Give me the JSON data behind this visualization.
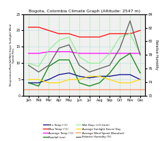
{
  "title": "Bogota, Colombia Climate Graph (Altitude: 2547 m)",
  "months": [
    "Jan",
    "Feb",
    "Mar",
    "Apr",
    "May",
    "Jun",
    "Jul",
    "Aug",
    "Sep",
    "Oct",
    "Nov",
    "Dec"
  ],
  "min_temp": [
    4.0,
    4.0,
    5.0,
    6.5,
    7.0,
    6.0,
    5.5,
    6.0,
    6.0,
    6.5,
    6.5,
    5.0
  ],
  "max_temp": [
    21.0,
    21.0,
    20.0,
    19.0,
    19.0,
    18.0,
    18.0,
    18.0,
    19.0,
    19.0,
    19.0,
    20.0
  ],
  "avg_temp": [
    13.0,
    13.0,
    13.5,
    13.5,
    13.5,
    13.0,
    13.0,
    13.0,
    13.0,
    13.0,
    13.0,
    13.0
  ],
  "rainfall": [
    4.0,
    3.0,
    9.0,
    11.0,
    11.0,
    4.0,
    3.0,
    4.0,
    7.0,
    11.0,
    13.0,
    7.0
  ],
  "wet_days": [
    10,
    9,
    14,
    17,
    18,
    12,
    10,
    10,
    13,
    18,
    19,
    13
  ],
  "sunlight": [
    5.0,
    5.0,
    4.0,
    4.0,
    5.0,
    5.0,
    6.0,
    6.0,
    5.0,
    4.0,
    4.0,
    5.0
  ],
  "wind_speed_val": 2.0,
  "humidity": [
    76.5,
    75.5,
    76.5,
    79.0,
    79.5,
    76.5,
    75.5,
    76.0,
    76.5,
    79.0,
    83.0,
    78.0
  ],
  "min_temp_color": "#00008B",
  "max_temp_color": "#FF0000",
  "avg_temp_color": "#FF00FF",
  "rainfall_color": "#008000",
  "wet_days_color": "#90EE90",
  "sunlight_color": "#FFD700",
  "wind_speed_color": "#FFA07A",
  "humidity_color": "#555555",
  "ylim_left": [
    0,
    25
  ],
  "ylim_right": [
    72,
    84
  ],
  "left_yticks": [
    0,
    5,
    10,
    15,
    20,
    25
  ],
  "right_yticks": [
    72,
    74,
    76,
    78,
    80,
    82,
    84
  ],
  "hgrid_values": [
    5,
    10,
    15,
    20
  ],
  "background_color": "#ffffff",
  "plot_bg_color": "#f0f0f0"
}
